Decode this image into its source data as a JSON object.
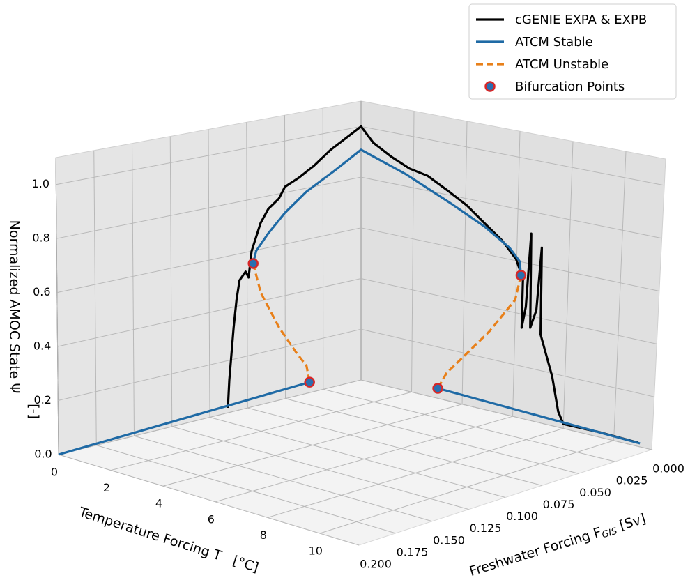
{
  "chart_data": {
    "type": "line3d",
    "xlabel": "Temperature Forcing T   [°C]",
    "ylabel": {
      "text": "Freshwater Forcing F",
      "subscript": "GIS",
      "suffix": " [Sv]"
    },
    "zlabel": [
      "Normalized AMOC State Ψ",
      "[-]"
    ],
    "xlim": [
      0,
      11.5
    ],
    "ylim": [
      0,
      0.2
    ],
    "zlim": [
      0,
      1.1
    ],
    "xticks": [
      0,
      2,
      4,
      6,
      8,
      10
    ],
    "yticks": [
      {
        "value": 0,
        "label": "0.000"
      },
      0.025,
      {
        "value": 0.05,
        "label": "0.050"
      },
      0.075,
      {
        "value": 0.1,
        "label": "0.100"
      },
      0.125,
      {
        "value": 0.15,
        "label": "0.150"
      },
      0.175,
      {
        "value": 0.2,
        "label": "0.200"
      }
    ],
    "zticks": [
      {
        "value": 0,
        "label": "0.0"
      },
      0.2,
      0.4,
      0.6,
      0.8,
      {
        "value": 1,
        "label": "1.0"
      }
    ],
    "grid": true,
    "legend": "upper right",
    "series": [
      {
        "name": "cGENIE EXPA & EXPB",
        "color": "#000000",
        "style": "solid",
        "T": [
          0,
          0,
          0,
          0,
          0,
          0,
          0,
          0,
          0,
          0,
          0,
          0,
          0,
          0,
          0,
          0,
          0,
          0.47,
          1.16,
          1.85,
          2.54,
          3.37,
          4.06,
          4.74,
          5.43,
          5.98,
          6.26,
          6.26,
          6.4,
          6.53,
          6.59,
          6.81,
          6.95,
          7.0,
          7.5,
          7.78,
          8.0,
          9.43,
          10.95
        ],
        "F": [
          0.088,
          0.087,
          0.084,
          0.082,
          0.08,
          0.076,
          0.074,
          0.072,
          0.066,
          0.061,
          0.054,
          0.05,
          0.041,
          0.031,
          0.02,
          0.008,
          0,
          0,
          0,
          0,
          0,
          0,
          0,
          0,
          0,
          0,
          0,
          0,
          0,
          0,
          0,
          0,
          0,
          0,
          0,
          0,
          0,
          0,
          0
        ],
        "psi": [
          0.019,
          0.124,
          0.321,
          0.426,
          0.498,
          0.526,
          0.501,
          0.6,
          0.701,
          0.749,
          0.781,
          0.822,
          0.846,
          0.881,
          0.931,
          0.972,
          1.0,
          0.945,
          0.904,
          0.872,
          0.858,
          0.813,
          0.773,
          0.719,
          0.666,
          0.605,
          0.536,
          0.348,
          0.431,
          0.716,
          0.355,
          0.427,
          0.671,
          0.338,
          0.188,
          0.06,
          0.017,
          0.019,
          0.014
        ]
      },
      {
        "name": "ATCM Stable",
        "color": "#1f6aa5",
        "style": "solid",
        "T": [
          0,
          0,
          null,
          0,
          0,
          0,
          0,
          0,
          0,
          0,
          1.71,
          3.37,
          4.74,
          5.71,
          6.12,
          6.18,
          null,
          3.03,
          11.03
        ],
        "F": [
          0.2,
          0.034,
          null,
          0.071,
          0.069,
          0.061,
          0.05,
          0.036,
          0.0175,
          0,
          0,
          0,
          0,
          0,
          0,
          0,
          null,
          0,
          0
        ],
        "psi": [
          0,
          0.041,
          null,
          0.551,
          0.597,
          0.655,
          0.721,
          0.786,
          0.846,
          0.908,
          0.847,
          0.772,
          0.706,
          0.645,
          0.6,
          0.548,
          null,
          0.039,
          0.013
        ]
      },
      {
        "name": "ATCM Unstable",
        "color": "#e8801a",
        "style": "dashed",
        "T": [
          0,
          0,
          0,
          0,
          0,
          0,
          null,
          6.18,
          5.98,
          5.02,
          4.06,
          3.37,
          3.03
        ],
        "F": [
          0.071,
          0.066,
          0.054,
          0.043,
          0.036,
          0.034,
          null,
          0,
          0,
          0,
          0,
          0,
          0
        ],
        "psi": [
          0.551,
          0.431,
          0.281,
          0.171,
          0.107,
          0.041,
          null,
          0.548,
          0.449,
          0.307,
          0.19,
          0.107,
          0.039
        ]
      },
      {
        "name": "Bifurcation Points",
        "color": "#2a6fb0",
        "edgecolor": "#d62728",
        "style": "markers",
        "T": [
          0,
          0,
          6.18,
          3.03
        ],
        "F": [
          0.071,
          0.034,
          0,
          0
        ],
        "psi": [
          0.551,
          0.041,
          0.548,
          0.039
        ]
      }
    ]
  }
}
